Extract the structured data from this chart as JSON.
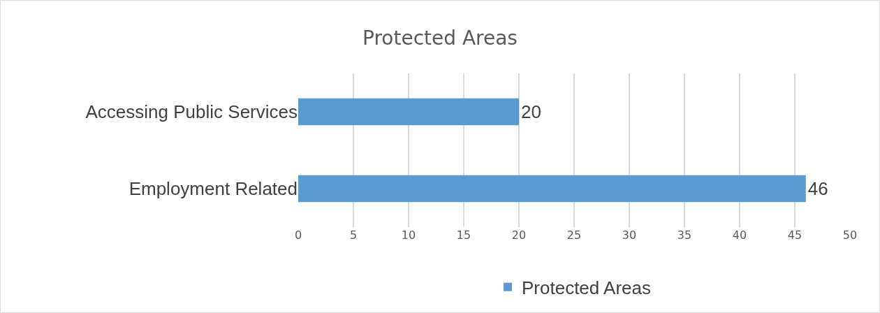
{
  "chart_data": {
    "type": "bar",
    "orientation": "horizontal",
    "title": "Protected Areas",
    "categories": [
      "Accessing Public Services",
      "Employment Related"
    ],
    "series": [
      {
        "name": "Protected Areas",
        "color": "#5b9bd5",
        "values": [
          20,
          46
        ]
      }
    ],
    "xlim": [
      0,
      50
    ],
    "xticks": [
      0,
      5,
      10,
      15,
      20,
      25,
      30,
      35,
      40,
      45,
      50
    ],
    "grid": "x",
    "legend": "bottom",
    "data_labels": true
  }
}
